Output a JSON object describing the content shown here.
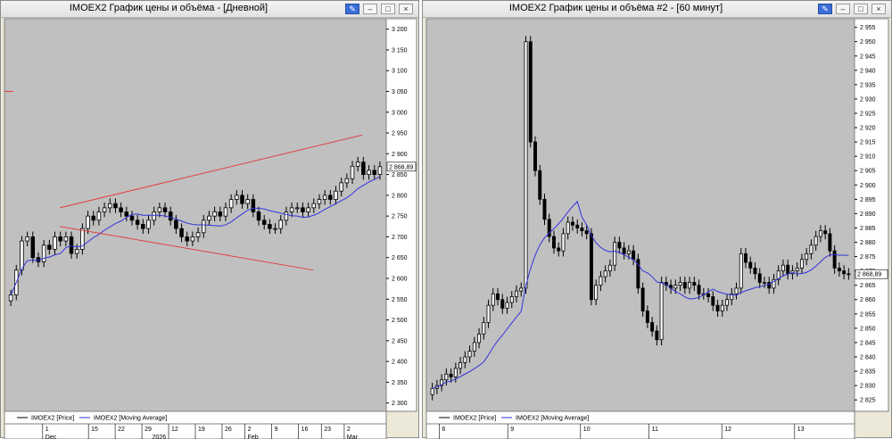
{
  "windows": [
    {
      "title": "IMOEX2 График цены и объёма - [Дневной]",
      "buttons": [
        "pin-icon",
        "minimize-icon",
        "maximize-icon",
        "close-icon"
      ]
    },
    {
      "title": "IMOEX2 График цены и объёма #2 - [60 минут]",
      "buttons": [
        "pin-icon",
        "minimize-icon",
        "maximize-icon",
        "close-icon"
      ]
    }
  ],
  "colors": {
    "plot_bg": "#c0c0c0",
    "axis_bg": "#ffffff",
    "ma": "#3333dd",
    "trend": "#e04040",
    "candle": "#000000",
    "up_body": "#ffffff"
  },
  "chart_data": [
    {
      "type": "candlestick",
      "title": "IMOEX2 График цены и объёма - [Дневной]",
      "ylim": [
        2280,
        3225
      ],
      "yticks": [
        "3 200",
        "3 150",
        "3 100",
        "3 050",
        "3 000",
        "2 950",
        "2 900",
        "2 850",
        "2 800",
        "2 750",
        "2 700",
        "2 650",
        "2 600",
        "2 550",
        "2 500",
        "2 450",
        "2 400",
        "2 350",
        "2 300"
      ],
      "ytick_values": [
        3200,
        3150,
        3100,
        3050,
        3000,
        2950,
        2900,
        2850,
        2800,
        2750,
        2700,
        2650,
        2600,
        2550,
        2500,
        2450,
        2400,
        2350,
        2300
      ],
      "last_price_label": "2 868,89",
      "last_price": 2868.89,
      "xticks_top": [
        "1",
        "15",
        "22",
        "29",
        "12",
        "19",
        "26",
        "2",
        "9",
        "16",
        "23",
        "2"
      ],
      "xticks_bottom": [
        "Dec",
        "2026",
        "Feb",
        "Mar"
      ],
      "legend": [
        "IMOEX2 [Price]",
        "IMOEX2 [Moving Average]"
      ],
      "close": [
        2560,
        2620,
        2690,
        2700,
        2650,
        2640,
        2680,
        2670,
        2700,
        2690,
        2700,
        2660,
        2670,
        2720,
        2750,
        2740,
        2760,
        2770,
        2780,
        2770,
        2760,
        2750,
        2740,
        2730,
        2720,
        2740,
        2760,
        2770,
        2760,
        2740,
        2720,
        2700,
        2690,
        2700,
        2710,
        2740,
        2750,
        2760,
        2750,
        2770,
        2790,
        2800,
        2780,
        2790,
        2760,
        2740,
        2730,
        2720,
        2720,
        2740,
        2760,
        2770,
        2770,
        2760,
        2770,
        2780,
        2790,
        2800,
        2790,
        2810,
        2830,
        2840,
        2870,
        2880,
        2850,
        2860,
        2850,
        2868.89
      ]
    },
    {
      "type": "candlestick",
      "title": "IMOEX2 График цены и объёма #2 - [60 минут]",
      "ylim": [
        2821,
        2958
      ],
      "yticks": [
        "2 955",
        "2 950",
        "2 945",
        "2 940",
        "2 935",
        "2 930",
        "2 925",
        "2 920",
        "2 915",
        "2 910",
        "2 905",
        "2 900",
        "2 895",
        "2 890",
        "2 885",
        "2 880",
        "2 875",
        "2 870",
        "2 865",
        "2 860",
        "2 855",
        "2 850",
        "2 845",
        "2 840",
        "2 835",
        "2 830",
        "2 825"
      ],
      "ytick_values": [
        2955,
        2950,
        2945,
        2940,
        2935,
        2930,
        2925,
        2920,
        2915,
        2910,
        2905,
        2900,
        2895,
        2890,
        2885,
        2880,
        2875,
        2870,
        2865,
        2860,
        2855,
        2850,
        2845,
        2840,
        2835,
        2830,
        2825
      ],
      "last_price_label": "2 868,89",
      "last_price": 2868.89,
      "xticks_top": [
        "6",
        "9",
        "10",
        "11",
        "12",
        "13"
      ],
      "legend": [
        "IMOEX2 [Price]",
        "IMOEX2 [Moving Average]"
      ],
      "close": [
        2829,
        2830,
        2832,
        2834,
        2833,
        2836,
        2838,
        2840,
        2842,
        2845,
        2848,
        2852,
        2858,
        2862,
        2860,
        2857,
        2859,
        2861,
        2863,
        2864,
        2950,
        2915,
        2905,
        2895,
        2888,
        2882,
        2878,
        2877,
        2883,
        2887,
        2886,
        2885,
        2884,
        2883,
        2860,
        2865,
        2868,
        2870,
        2872,
        2880,
        2878,
        2876,
        2877,
        2874,
        2864,
        2856,
        2852,
        2849,
        2846,
        2866,
        2865,
        2864,
        2865,
        2866,
        2864,
        2866,
        2865,
        2862,
        2862,
        2861,
        2858,
        2856,
        2858,
        2860,
        2862,
        2864,
        2876,
        2873,
        2871,
        2869,
        2866,
        2866,
        2864,
        2867,
        2870,
        2872,
        2869,
        2870,
        2871,
        2874,
        2876,
        2879,
        2882,
        2884,
        2883,
        2877,
        2871,
        2870,
        2869,
        2868.89
      ]
    }
  ]
}
